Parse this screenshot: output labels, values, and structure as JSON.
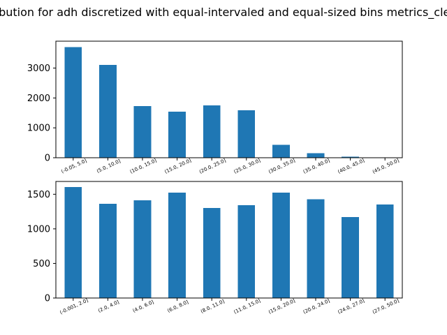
{
  "figure_title": "Distribution for adh discretized with equal-intervaled and equal-sized bins metrics_cleaned",
  "colors": {
    "bar": "#1f77b4",
    "axis": "#000000",
    "background": "#ffffff"
  },
  "chart_data": [
    {
      "type": "bar",
      "categories": [
        "(-0.05, 5.0]",
        "(5.0, 10.0]",
        "(10.0, 15.0]",
        "(15.0, 20.0]",
        "(20.0, 25.0]",
        "(25.0, 30.0]",
        "(30.0, 35.0]",
        "(35.0, 40.0]",
        "(40.0, 45.0]",
        "(45.0, 50.0]"
      ],
      "values": [
        3700,
        3110,
        1730,
        1540,
        1750,
        1590,
        430,
        150,
        30,
        5
      ],
      "ylim": [
        0,
        3900
      ],
      "yticks": [
        0,
        1000,
        2000,
        3000
      ],
      "title": "",
      "xlabel": "",
      "ylabel": "",
      "grid": false
    },
    {
      "type": "bar",
      "categories": [
        "(-0.001, 2.0]",
        "(2.0, 4.0]",
        "(4.0, 6.0]",
        "(6.0, 8.0]",
        "(8.0, 11.0]",
        "(11.0, 15.0]",
        "(15.0, 20.0]",
        "(20.0, 24.0]",
        "(24.0, 27.0]",
        "(27.0, 50.0]"
      ],
      "values": [
        1605,
        1360,
        1415,
        1525,
        1300,
        1340,
        1525,
        1430,
        1170,
        1350
      ],
      "ylim": [
        0,
        1685
      ],
      "yticks": [
        0,
        500,
        1000,
        1500
      ],
      "title": "",
      "xlabel": "",
      "ylabel": "",
      "grid": false
    }
  ]
}
